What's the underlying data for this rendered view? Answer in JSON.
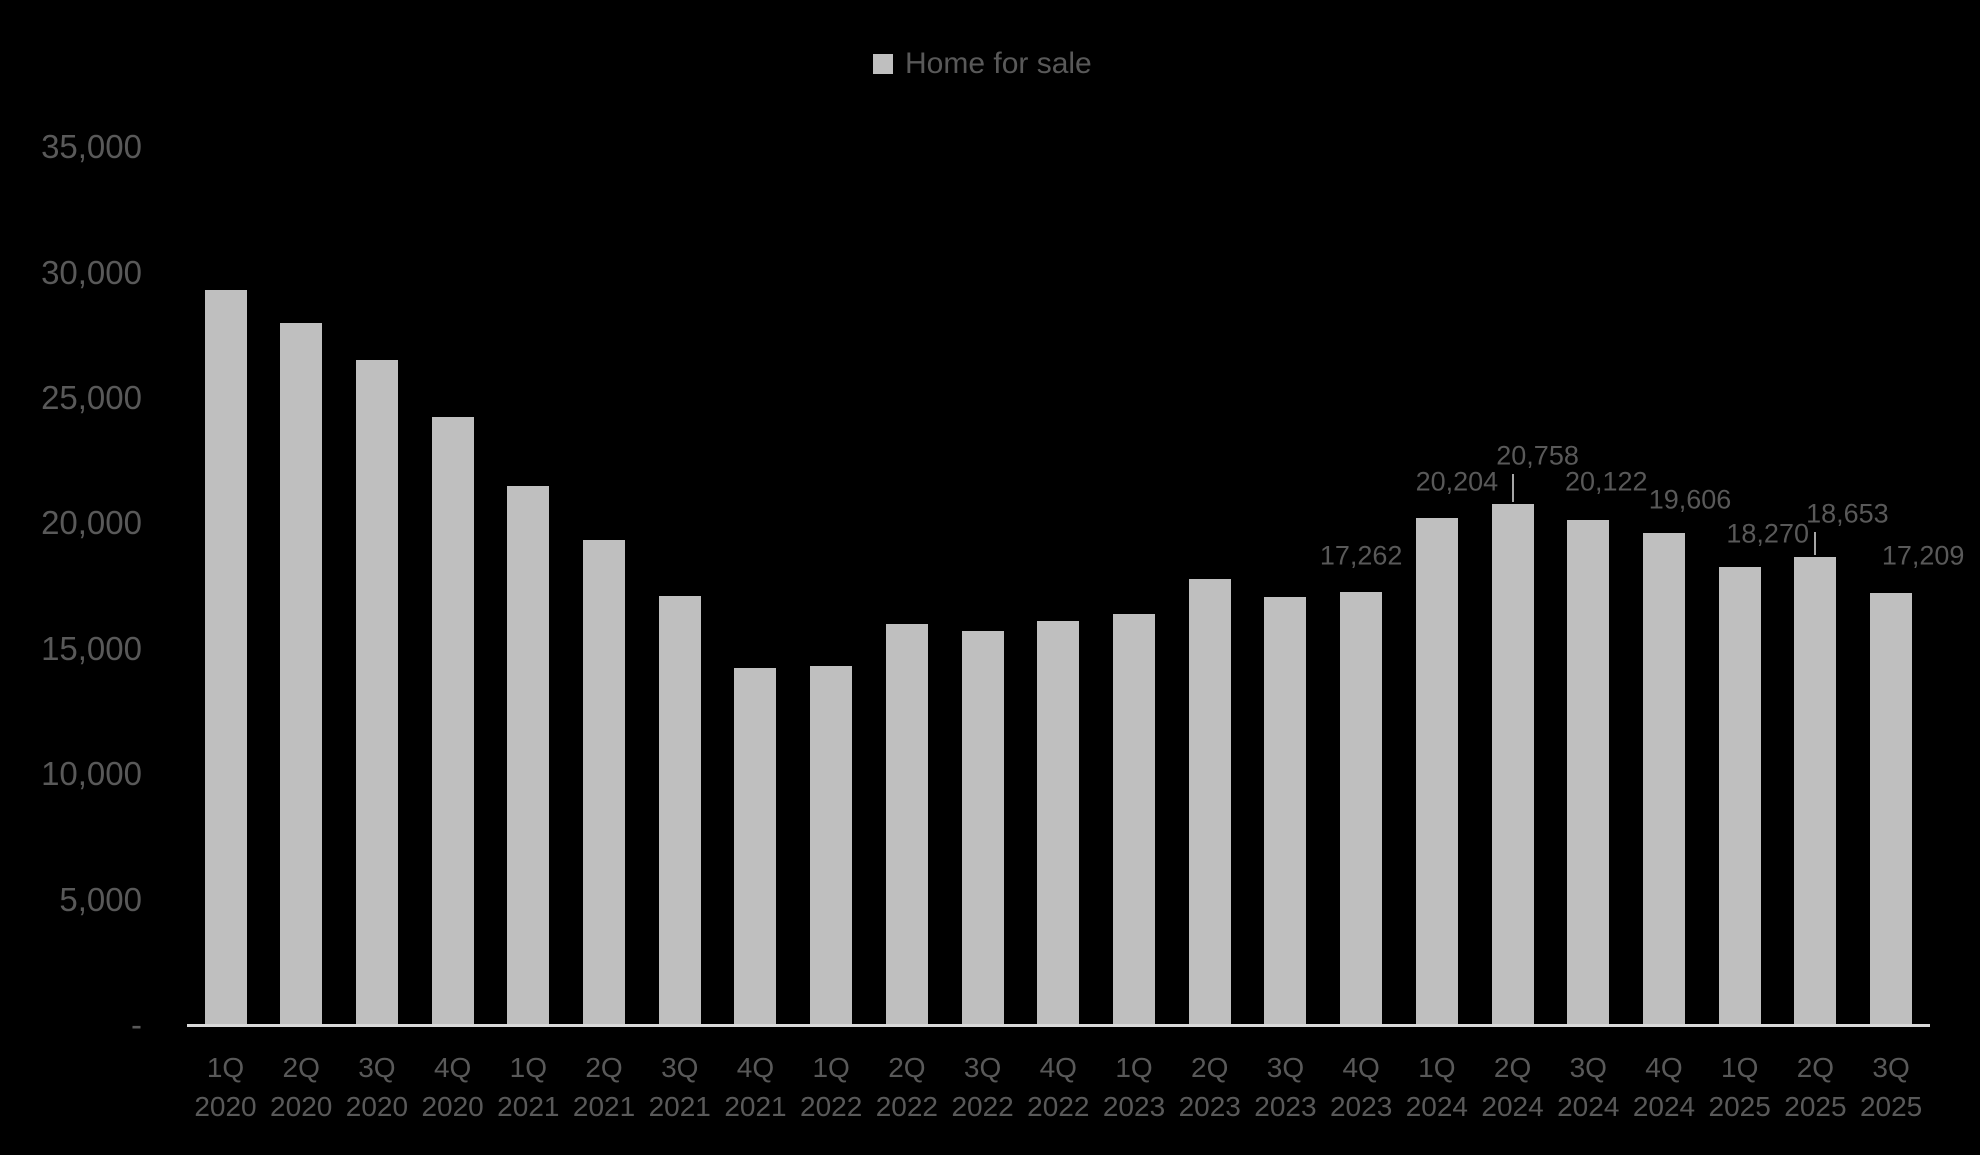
{
  "chart_data": {
    "type": "bar",
    "title": "",
    "legend": {
      "label": "Home for sale",
      "position": "top"
    },
    "categories": [
      {
        "quarter": "1Q",
        "year": "2020"
      },
      {
        "quarter": "2Q",
        "year": "2020"
      },
      {
        "quarter": "3Q",
        "year": "2020"
      },
      {
        "quarter": "4Q",
        "year": "2020"
      },
      {
        "quarter": "1Q",
        "year": "2021"
      },
      {
        "quarter": "2Q",
        "year": "2021"
      },
      {
        "quarter": "3Q",
        "year": "2021"
      },
      {
        "quarter": "4Q",
        "year": "2021"
      },
      {
        "quarter": "1Q",
        "year": "2022"
      },
      {
        "quarter": "2Q",
        "year": "2022"
      },
      {
        "quarter": "3Q",
        "year": "2022"
      },
      {
        "quarter": "4Q",
        "year": "2022"
      },
      {
        "quarter": "1Q",
        "year": "2023"
      },
      {
        "quarter": "2Q",
        "year": "2023"
      },
      {
        "quarter": "3Q",
        "year": "2023"
      },
      {
        "quarter": "4Q",
        "year": "2023"
      },
      {
        "quarter": "1Q",
        "year": "2024"
      },
      {
        "quarter": "2Q",
        "year": "2024"
      },
      {
        "quarter": "3Q",
        "year": "2024"
      },
      {
        "quarter": "4Q",
        "year": "2024"
      },
      {
        "quarter": "1Q",
        "year": "2025"
      },
      {
        "quarter": "2Q",
        "year": "2025"
      },
      {
        "quarter": "3Q",
        "year": "2025"
      }
    ],
    "series": [
      {
        "name": "Home for sale",
        "values": [
          29300,
          28000,
          26500,
          24250,
          21500,
          19350,
          17100,
          14250,
          14300,
          16000,
          15700,
          16100,
          16400,
          17800,
          17050,
          17262,
          20204,
          20758,
          20122,
          19606,
          18270,
          18653,
          17209
        ]
      }
    ],
    "data_labels": [
      {
        "index": 15,
        "text": "17,262"
      },
      {
        "index": 16,
        "text": "20,204"
      },
      {
        "index": 17,
        "text": "20,758"
      },
      {
        "index": 18,
        "text": "20,122"
      },
      {
        "index": 19,
        "text": "19,606"
      },
      {
        "index": 20,
        "text": "18,270"
      },
      {
        "index": 21,
        "text": "18,653"
      },
      {
        "index": 22,
        "text": "17,209"
      }
    ],
    "y_axis": {
      "min": 0,
      "max": 35000,
      "tick_step": 5000,
      "tick_labels": [
        "35,000",
        "30,000",
        "25,000",
        "20,000",
        "15,000",
        "10,000",
        "5,000",
        "-"
      ]
    },
    "x_axis": {
      "label": ""
    },
    "ylabel": "",
    "xlabel": "",
    "grid": "off",
    "colors": {
      "background": "#000000",
      "bar": "#bfbfbf",
      "axis_line": "#d9d9d9",
      "text": "#595959",
      "leader_line": "#a6a6a6"
    }
  }
}
